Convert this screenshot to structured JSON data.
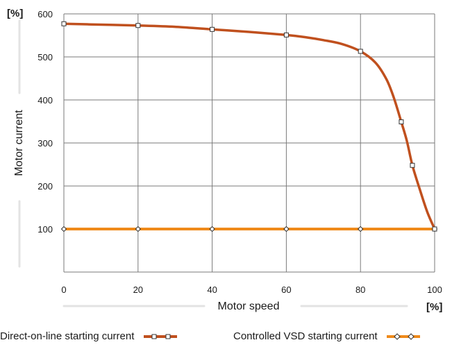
{
  "chart_data": {
    "type": "line",
    "title": "",
    "xlabel": "Motor speed",
    "ylabel": "Motor current",
    "x_unit": "[%]",
    "y_unit": "[%]",
    "xlim": [
      0,
      100
    ],
    "ylim": [
      0,
      600
    ],
    "xticks": [
      "0",
      "20",
      "40",
      "60",
      "80",
      "100"
    ],
    "yticks": [
      "100",
      "200",
      "300",
      "400",
      "500",
      "600"
    ],
    "grid": true,
    "legend_position": "bottom",
    "series": [
      {
        "name": "Direct-on-line starting current",
        "color": "#c0501e",
        "marker": "square",
        "curve_x": [
          0,
          10,
          20,
          30,
          40,
          50,
          60,
          65,
          70,
          75,
          80,
          84,
          87,
          89,
          91,
          92.5,
          94,
          96,
          98,
          100
        ],
        "curve_y": [
          577,
          575,
          573,
          570,
          564,
          558,
          551,
          546,
          539,
          530,
          513,
          487,
          448,
          405,
          349,
          305,
          248,
          192,
          140,
          100
        ],
        "marker_x": [
          0,
          20,
          40,
          60,
          80,
          91,
          94,
          100
        ],
        "marker_y": [
          577,
          573,
          564,
          551,
          513,
          349,
          248,
          100
        ]
      },
      {
        "name": "Controlled VSD starting current",
        "color": "#ef8a1a",
        "marker": "diamond",
        "curve_x": [
          0,
          20,
          40,
          60,
          80,
          100
        ],
        "curve_y": [
          100,
          100,
          100,
          100,
          100,
          100
        ],
        "marker_x": [
          0,
          20,
          40,
          60,
          80,
          100
        ],
        "marker_y": [
          100,
          100,
          100,
          100,
          100,
          100
        ]
      }
    ]
  }
}
